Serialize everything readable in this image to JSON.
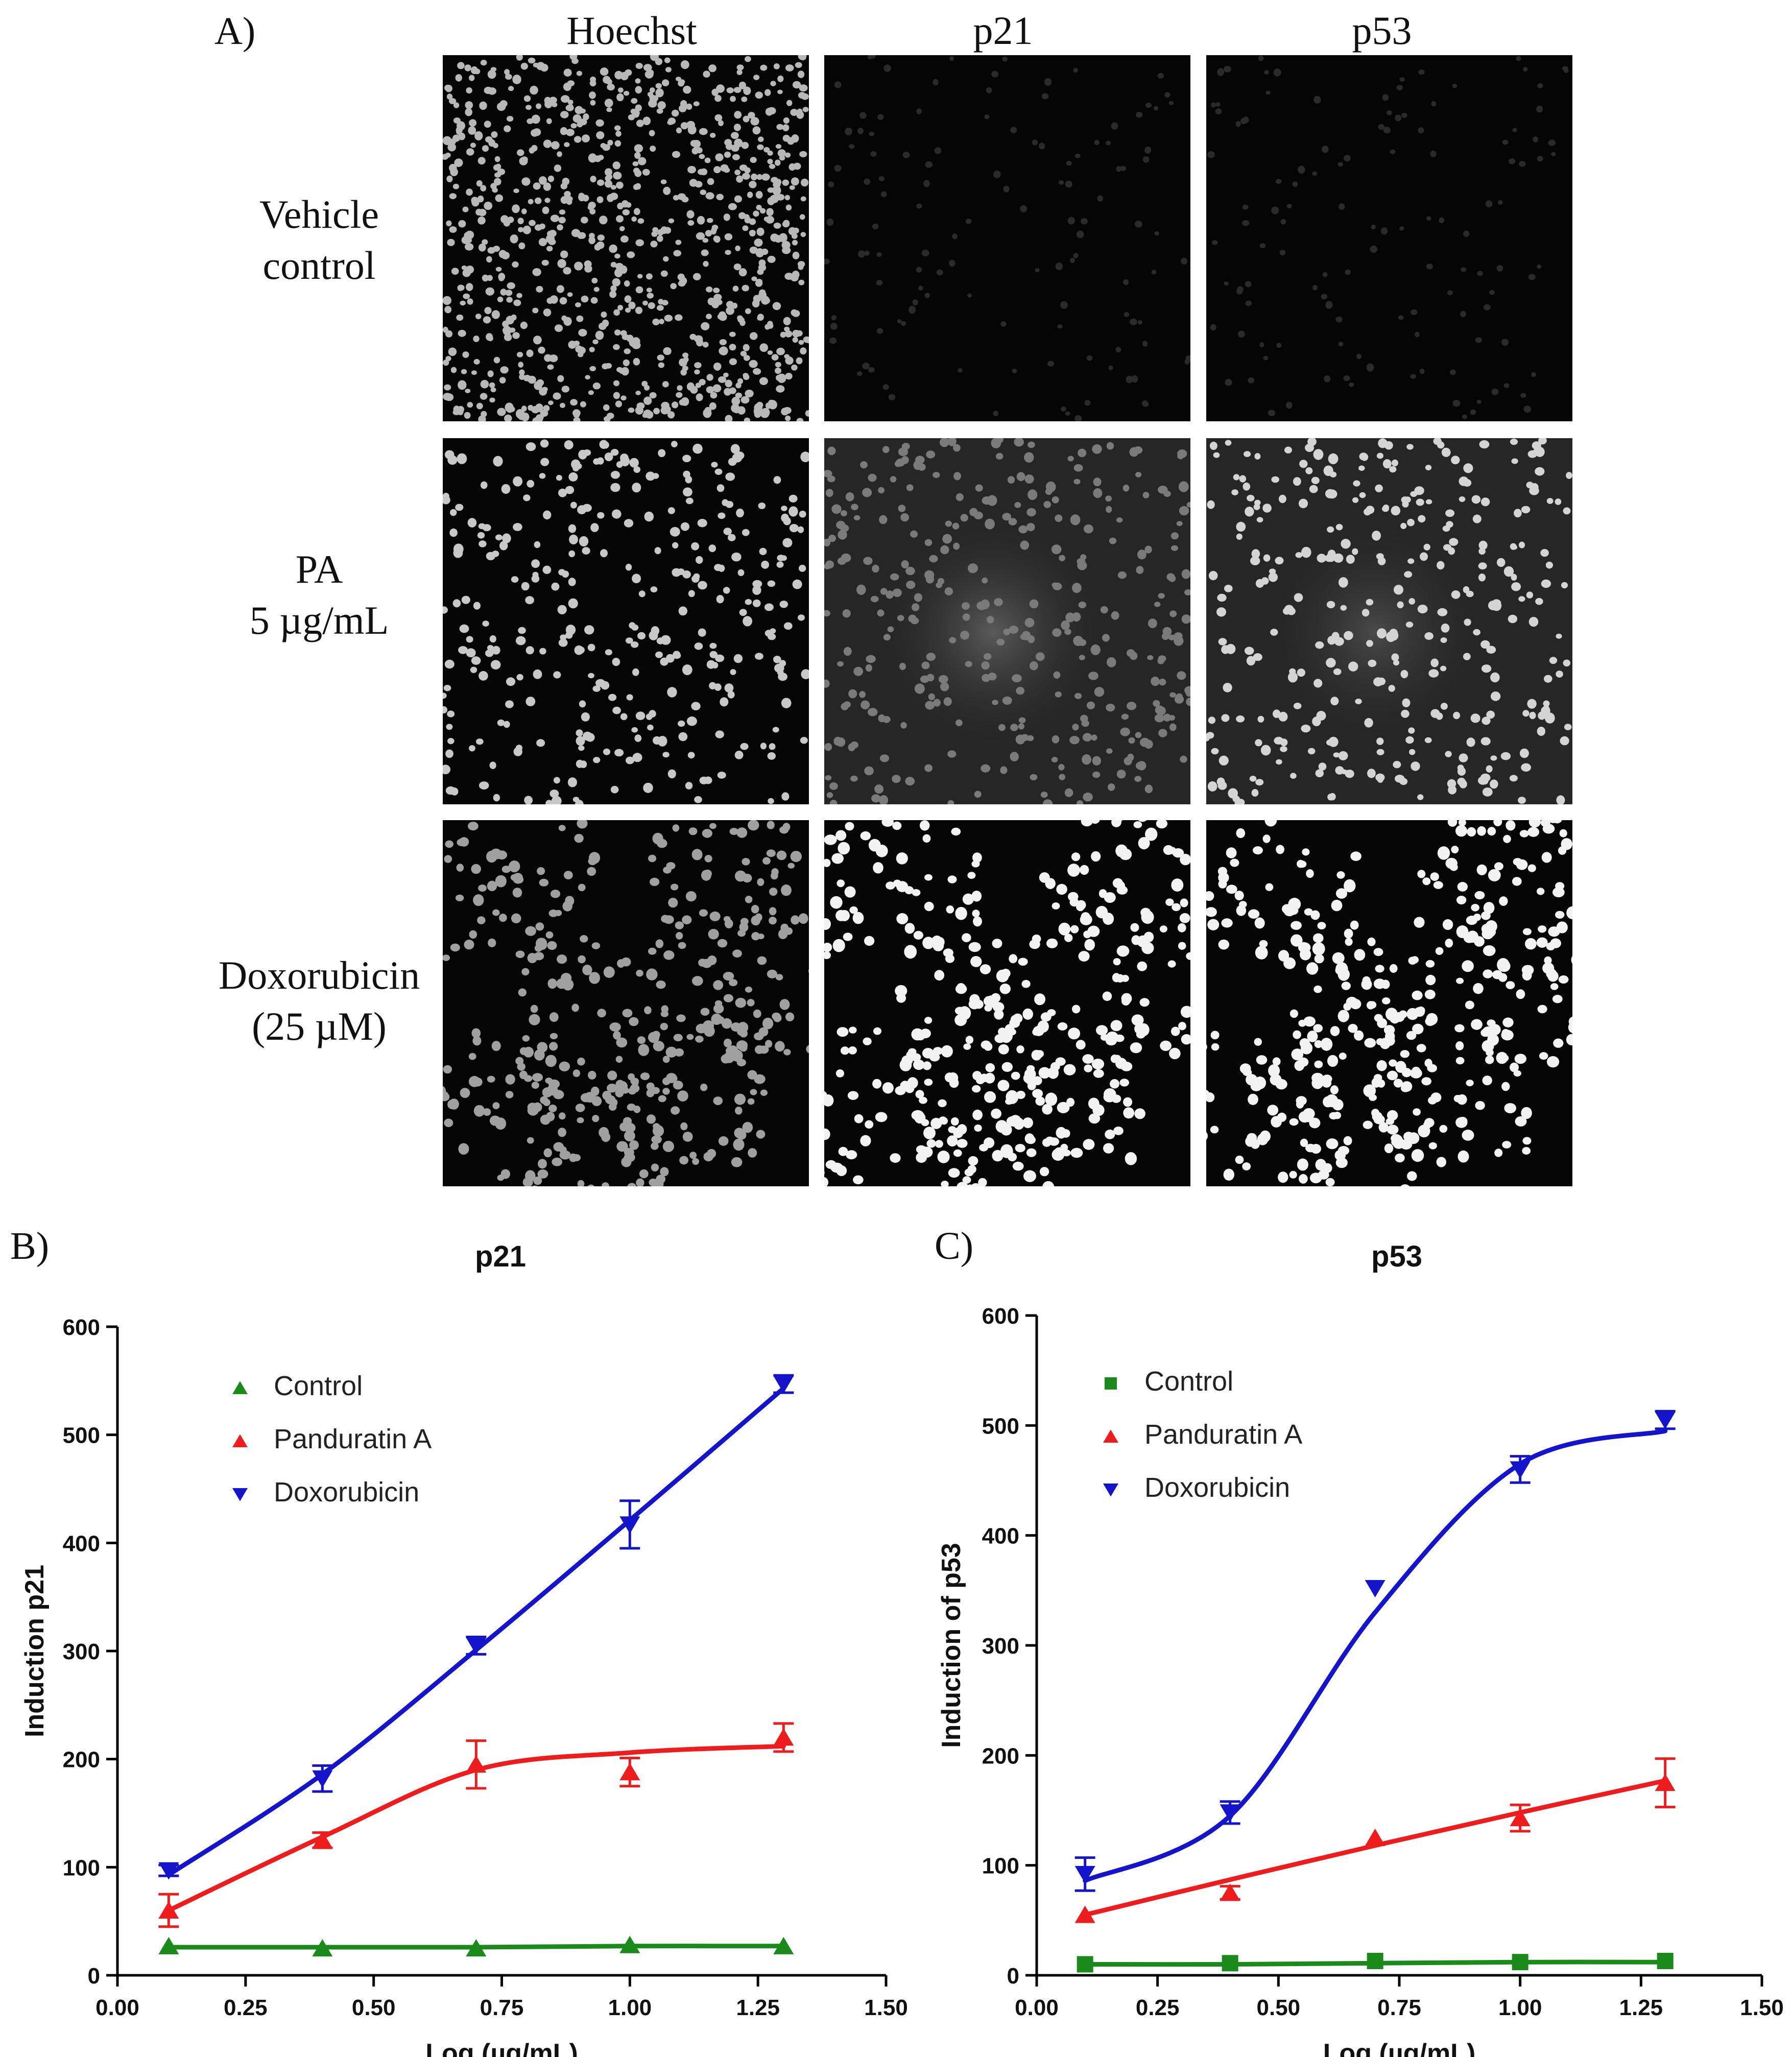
{
  "panel_a": {
    "letter": "A)",
    "column_headers": [
      "Hoechst",
      "p21",
      "p53"
    ],
    "rows": [
      {
        "label_line1": "Vehicle",
        "label_line2": "control"
      },
      {
        "label_line1": "PA",
        "label_line2": "5 µg/mL"
      },
      {
        "label_line1": "Doxorubicin",
        "label_line2": "(25 µM)"
      }
    ]
  },
  "chart_data": [
    {
      "panel": "B)",
      "type": "line",
      "title": "p21",
      "xlabel": "Log (µg/mL)",
      "ylabel": "Induction p21",
      "xlim": [
        0.0,
        1.5
      ],
      "ylim": [
        0,
        600
      ],
      "xticks": [
        "0.00",
        "0.25",
        "0.50",
        "0.75",
        "1.00",
        "1.25",
        "1.50"
      ],
      "yticks": [
        "0",
        "100",
        "200",
        "300",
        "400",
        "500",
        "600"
      ],
      "x": [
        0.1,
        0.4,
        0.7,
        1.0,
        1.3
      ],
      "legend_position": "top-left",
      "grid": false,
      "series": [
        {
          "name": "Control",
          "color": "#1a8a1a",
          "marker": "triangle-up",
          "values": [
            27,
            25,
            25,
            28,
            27
          ],
          "errors": [
            0,
            0,
            0,
            0,
            0
          ],
          "fit": [
            26,
            26,
            26,
            27,
            27
          ]
        },
        {
          "name": "Panduratin A",
          "color": "#ee1c1c",
          "marker": "triangle-up",
          "values": [
            60,
            125,
            195,
            188,
            220
          ],
          "errors": [
            15,
            7,
            22,
            13,
            13
          ],
          "fit": [
            60,
            128,
            190,
            206,
            212
          ]
        },
        {
          "name": "Doxorubicin",
          "color": "#1414cc",
          "marker": "triangle-down",
          "values": [
            97,
            182,
            305,
            417,
            547
          ],
          "errors": [
            5,
            12,
            8,
            22,
            8
          ],
          "fit": [
            93,
            186,
            301,
            421,
            543
          ]
        }
      ]
    },
    {
      "panel": "C)",
      "type": "line",
      "title": "p53",
      "xlabel": "Log (µg/mL)",
      "ylabel": "Induction of p53",
      "xlim": [
        0.0,
        1.5
      ],
      "ylim": [
        0,
        600
      ],
      "xticks": [
        "0.00",
        "0.25",
        "0.50",
        "0.75",
        "1.00",
        "1.25",
        "1.50"
      ],
      "yticks": [
        "0",
        "100",
        "200",
        "300",
        "400",
        "500",
        "600"
      ],
      "x": [
        0.1,
        0.4,
        0.7,
        1.0,
        1.3
      ],
      "legend_position": "top-left",
      "grid": false,
      "series": [
        {
          "name": "Control",
          "color": "#1a8a1a",
          "marker": "square",
          "values": [
            10,
            11,
            13,
            12,
            13
          ],
          "errors": [
            0,
            0,
            0,
            0,
            0
          ],
          "fit": [
            10,
            10,
            11,
            12,
            12
          ]
        },
        {
          "name": "Panduratin A",
          "color": "#ee1c1c",
          "marker": "triangle-up",
          "values": [
            55,
            75,
            125,
            143,
            175
          ],
          "errors": [
            0,
            6,
            0,
            12,
            22
          ],
          "fit": [
            55,
            87,
            118,
            148,
            177
          ]
        },
        {
          "name": "Doxorubicin",
          "color": "#1414cc",
          "marker": "triangle-down",
          "values": [
            92,
            148,
            352,
            460,
            505
          ],
          "errors": [
            15,
            10,
            0,
            12,
            8
          ],
          "fit": [
            86,
            145,
            330,
            465,
            495
          ]
        }
      ]
    }
  ]
}
